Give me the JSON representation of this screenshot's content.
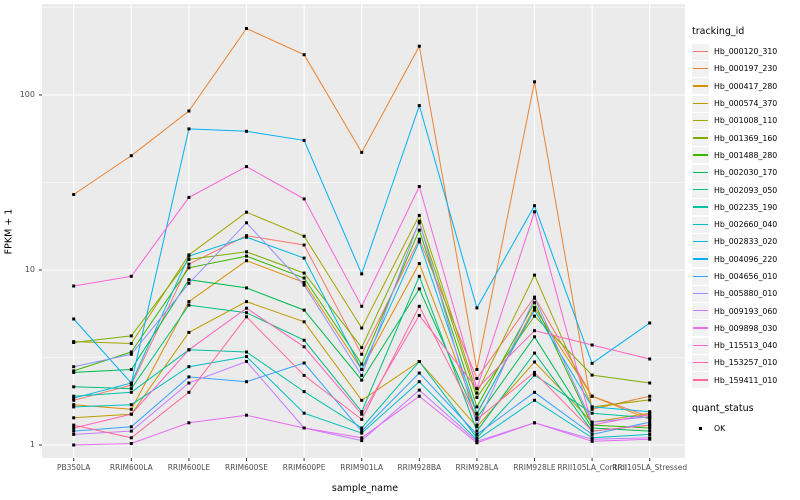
{
  "figure": {
    "bg": "#ffffff",
    "panel_bg": "#ebebeb",
    "grid_color": "#ffffff",
    "tick_color": "#333333",
    "point_color": "#000000",
    "axis_text_color": "#4d4d4d"
  },
  "axes": {
    "x_title": "sample_name",
    "y_title": "FPKM + 1",
    "y_tick_labels": [
      "1",
      "10",
      "100"
    ],
    "y_tick_values": [
      1,
      10,
      100
    ]
  },
  "legend": {
    "title": "tracking_id"
  },
  "legend2": {
    "title": "quant_status",
    "items": [
      {
        "label": "OK",
        "marker": "black-square"
      }
    ]
  },
  "chart_data": {
    "type": "line",
    "xlabel": "sample_name",
    "ylabel": "FPKM + 1",
    "yscale": "log10",
    "ylim": [
      0.84,
      330
    ],
    "y_major_gridlines": [
      1,
      10,
      100
    ],
    "y_minor_gridlines": [
      3.1623,
      31.623,
      316.23
    ],
    "grid": "on",
    "legend_position": "right",
    "point_marker": "black-square",
    "categories": [
      "PB350LA",
      "RRIM600LA",
      "RRIM600LE",
      "RRIM600SE",
      "RRIM600PE",
      "RRIM901LA",
      "RRIM928BA",
      "RRIM928LA",
      "RRIM928LE",
      "RRII105LA_Control",
      "RRII105LA_Stressed"
    ],
    "series": [
      {
        "name": "Hb_000120_310",
        "color": "#F8766D",
        "values": [
          1.8,
          2.2,
          10.8,
          15.7,
          13.9,
          3.3,
          15.0,
          2.4,
          7.0,
          1.9,
          1.45
        ]
      },
      {
        "name": "Hb_000197_230",
        "color": "#EA8331",
        "values": [
          27,
          45,
          81,
          240,
          170,
          47,
          190,
          2.7,
          119,
          1.6,
          1.9
        ]
      },
      {
        "name": "Hb_000417_280",
        "color": "#D89000",
        "values": [
          1.7,
          1.6,
          6.6,
          11.3,
          8.5,
          2.7,
          10.9,
          1.5,
          6.1,
          1.9,
          1.4
        ]
      },
      {
        "name": "Hb_000574_370",
        "color": "#C09B00",
        "values": [
          1.43,
          1.5,
          4.4,
          6.6,
          5.06,
          1.8,
          3.0,
          1.27,
          2.98,
          1.35,
          1.52
        ]
      },
      {
        "name": "Hb_001008_110",
        "color": "#A3A500",
        "values": [
          3.9,
          3.8,
          12.2,
          21.4,
          15.6,
          4.66,
          20.5,
          1.98,
          9.35,
          1.65,
          1.81
        ]
      },
      {
        "name": "Hb_001369_160",
        "color": "#7CAE00",
        "values": [
          3.85,
          4.2,
          11.5,
          12.7,
          9.6,
          3.6,
          18.6,
          1.87,
          5.45,
          2.51,
          2.26
        ]
      },
      {
        "name": "Hb_001488_280",
        "color": "#39B600",
        "values": [
          2.65,
          3.4,
          10.3,
          12.0,
          9.0,
          2.9,
          16.9,
          1.65,
          6.5,
          1.3,
          1.25
        ]
      },
      {
        "name": "Hb_002030_170",
        "color": "#00BB4E",
        "values": [
          2.6,
          2.7,
          8.8,
          7.9,
          5.9,
          2.35,
          7.8,
          1.43,
          4.15,
          1.25,
          1.2
        ]
      },
      {
        "name": "Hb_002093_050",
        "color": "#00BF7D",
        "values": [
          2.15,
          2.1,
          6.3,
          5.7,
          3.97,
          1.55,
          9.2,
          1.2,
          3.35,
          1.2,
          1.3
        ]
      },
      {
        "name": "Hb_002235_190",
        "color": "#00C1A3",
        "values": [
          1.9,
          2.0,
          3.5,
          3.4,
          2.02,
          1.25,
          3.0,
          1.1,
          2.51,
          1.52,
          1.43
        ]
      },
      {
        "name": "Hb_002660_040",
        "color": "#00BFC4",
        "values": [
          1.65,
          1.7,
          2.8,
          3.2,
          1.52,
          1.17,
          2.3,
          1.07,
          1.8,
          1.1,
          1.15
        ]
      },
      {
        "name": "Hb_002833_020",
        "color": "#00BAE0",
        "values": [
          1.85,
          2.26,
          12.0,
          15.4,
          11.7,
          2.7,
          14.5,
          1.52,
          5.9,
          1.65,
          1.55
        ]
      },
      {
        "name": "Hb_004096_220",
        "color": "#00B0F6",
        "values": [
          5.25,
          2.26,
          64,
          62,
          55,
          9.5,
          87,
          6.07,
          23.3,
          2.93,
          4.98
        ]
      },
      {
        "name": "Hb_004656_010",
        "color": "#35A2FF",
        "values": [
          1.2,
          1.27,
          2.45,
          2.3,
          2.94,
          1.2,
          2.58,
          1.15,
          2.0,
          1.15,
          1.35
        ]
      },
      {
        "name": "Hb_005880_010",
        "color": "#9590FF",
        "values": [
          2.8,
          3.3,
          8.4,
          18.6,
          8.2,
          2.5,
          19.0,
          1.3,
          6.9,
          1.35,
          1.45
        ]
      },
      {
        "name": "Hb_009193_060",
        "color": "#C77CFF",
        "values": [
          1.15,
          1.2,
          2.26,
          3.0,
          1.25,
          1.06,
          2.06,
          1.05,
          1.34,
          1.08,
          1.1
        ]
      },
      {
        "name": "Hb_009898_030",
        "color": "#E76BF3",
        "values": [
          1.0,
          1.02,
          1.34,
          1.48,
          1.25,
          1.1,
          1.9,
          1.03,
          1.34,
          1.05,
          1.08
        ]
      },
      {
        "name": "Hb_115513_040",
        "color": "#FA62DB",
        "values": [
          8.1,
          9.2,
          26,
          39,
          25.5,
          6.2,
          30,
          2.1,
          21.5,
          1.3,
          1.5
        ]
      },
      {
        "name": "Hb_153257_010",
        "color": "#FF62BC",
        "values": [
          1.25,
          1.5,
          3.5,
          6.05,
          3.64,
          1.5,
          5.5,
          2.1,
          4.5,
          3.73,
          3.1
        ]
      },
      {
        "name": "Hb_159411_010",
        "color": "#FF6A98",
        "values": [
          1.3,
          1.1,
          2.0,
          5.4,
          2.5,
          1.4,
          6.2,
          1.4,
          2.6,
          1.2,
          1.3
        ]
      }
    ]
  }
}
